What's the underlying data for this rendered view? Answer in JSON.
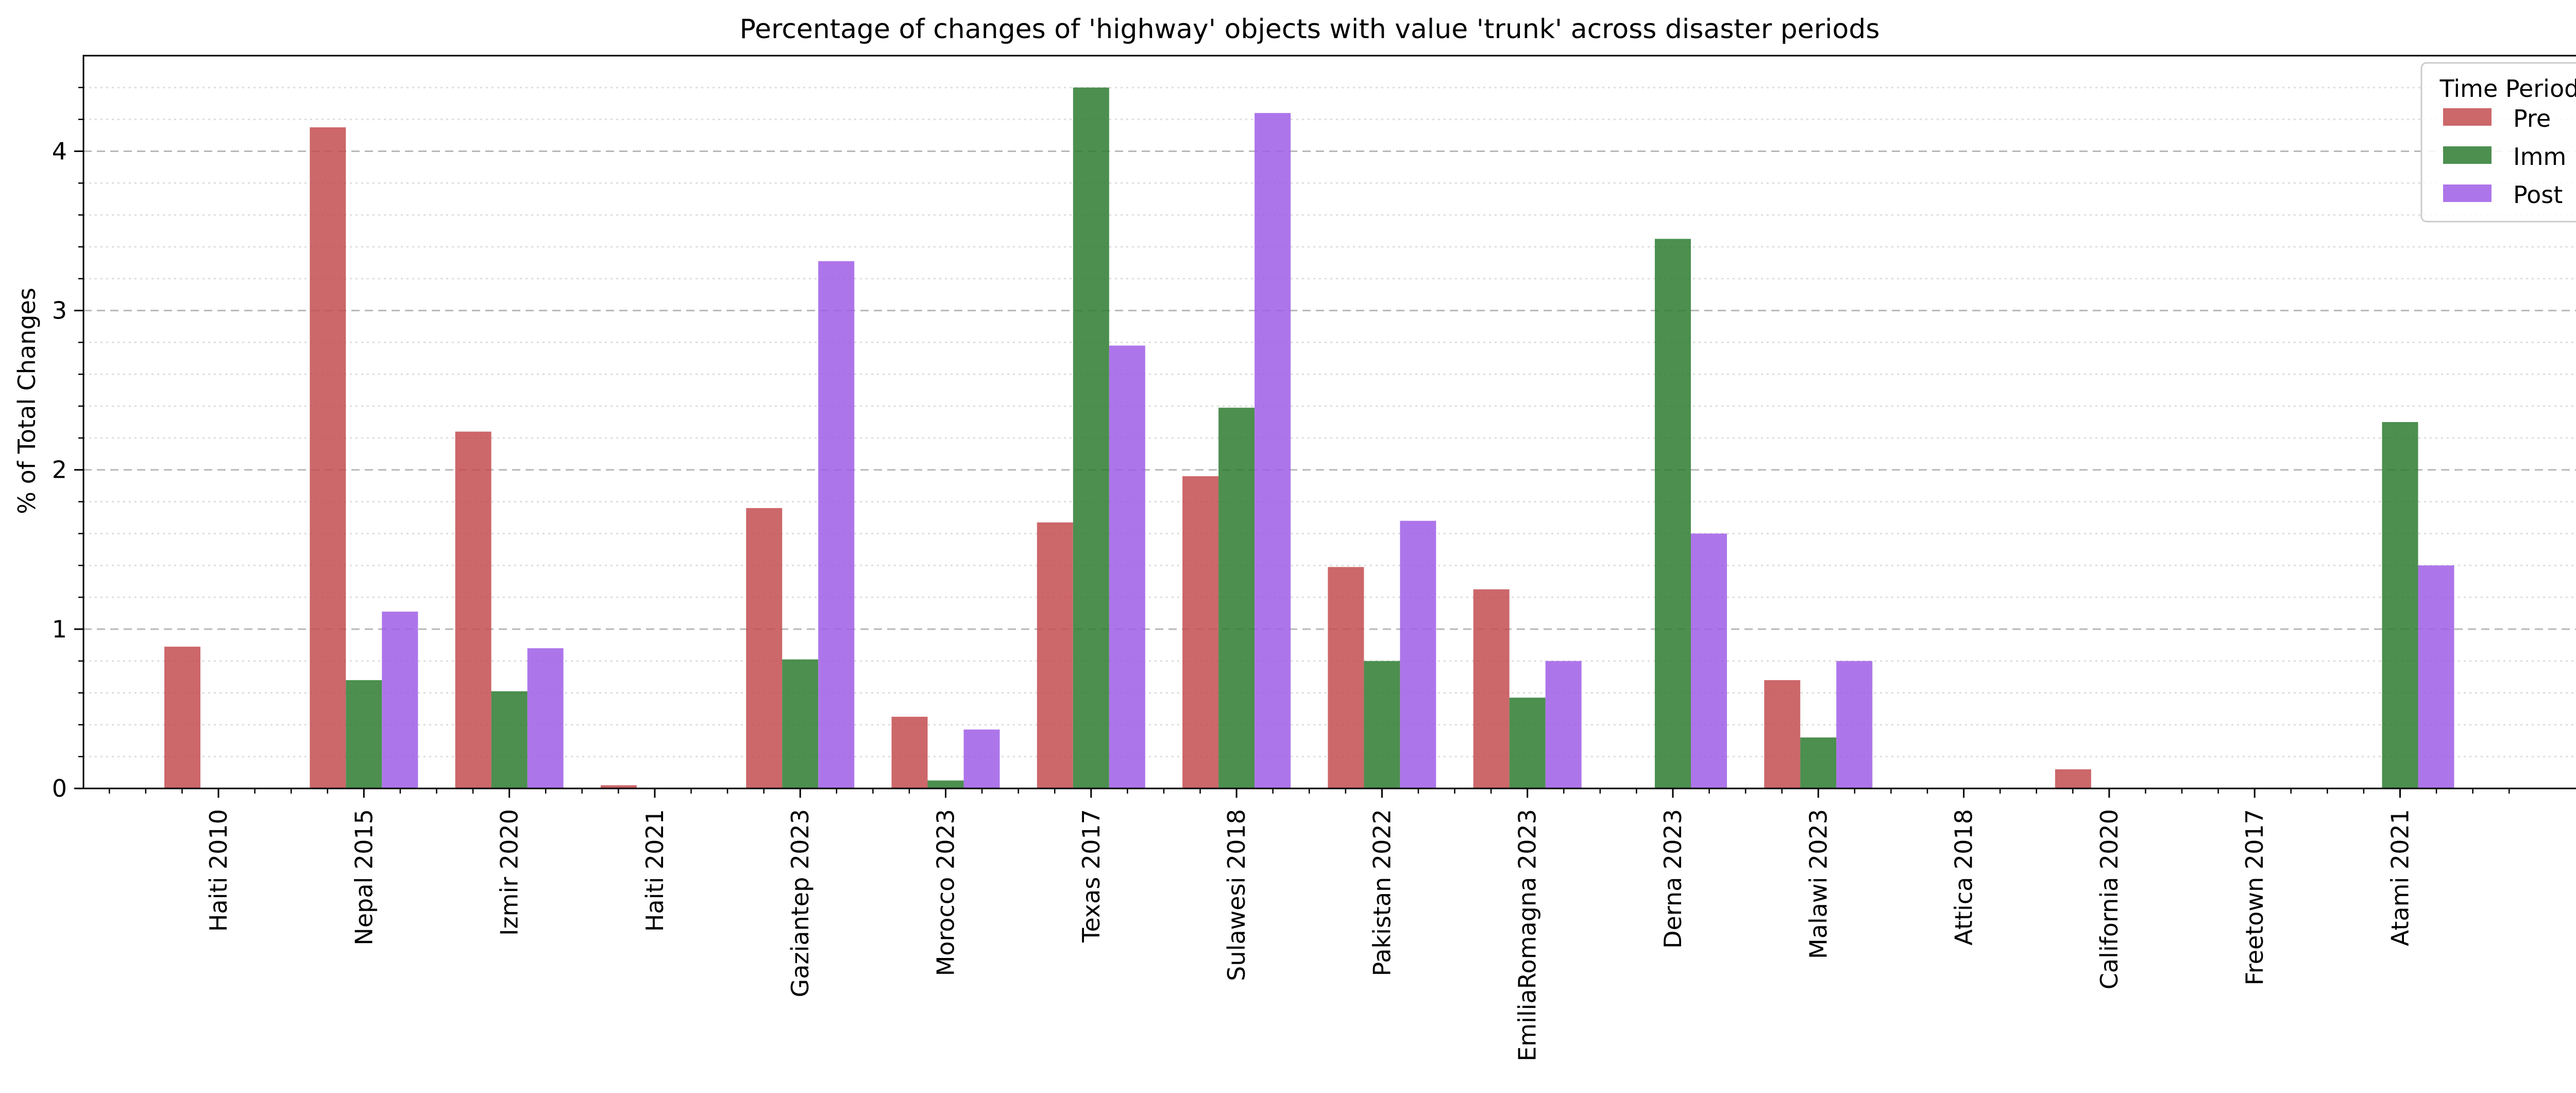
{
  "chart_data": {
    "type": "bar",
    "title": "Percentage of changes of 'highway' objects with value 'trunk' across disaster periods",
    "xlabel": "",
    "ylabel": "% of Total Changes",
    "ylim": [
      0,
      4.6
    ],
    "yticks": [
      0,
      1,
      2,
      3,
      4
    ],
    "ytick_labels": [
      "0",
      "1",
      "2",
      "3",
      "4"
    ],
    "minor_ytick_step": 0.2,
    "grid": {
      "major": "dashed",
      "minor": "dotted"
    },
    "legend": {
      "title": "Time Period",
      "placement": "top-right"
    },
    "categories": [
      "Haiti 2010",
      "Nepal 2015",
      "Izmir 2020",
      "Haiti 2021",
      "Gaziantep 2023",
      "Morocco 2023",
      "Texas 2017",
      "Sulawesi 2018",
      "Pakistan 2022",
      "EmiliaRomagna 2023",
      "Derna 2023",
      "Malawi 2023",
      "Attica 2018",
      "California 2020",
      "Freetown 2017",
      "Atami 2021"
    ],
    "series": [
      {
        "name": "Pre",
        "color": "#c44e52",
        "values": [
          0.89,
          4.15,
          2.24,
          0.02,
          1.76,
          0.45,
          1.67,
          1.96,
          1.39,
          1.25,
          0,
          0.68,
          0,
          0.12,
          0,
          0
        ]
      },
      {
        "name": "Imm",
        "color": "#2e7d32",
        "values": [
          0,
          0.68,
          0.61,
          0,
          0.81,
          0.05,
          4.4,
          2.39,
          0.8,
          0.57,
          3.45,
          0.32,
          0,
          0,
          0,
          2.3
        ]
      },
      {
        "name": "Post",
        "color": "#a05ee6",
        "values": [
          0,
          1.11,
          0.88,
          0,
          3.31,
          0.37,
          2.78,
          4.24,
          1.68,
          0.8,
          1.6,
          0.8,
          0,
          0,
          0,
          1.4
        ]
      }
    ]
  }
}
